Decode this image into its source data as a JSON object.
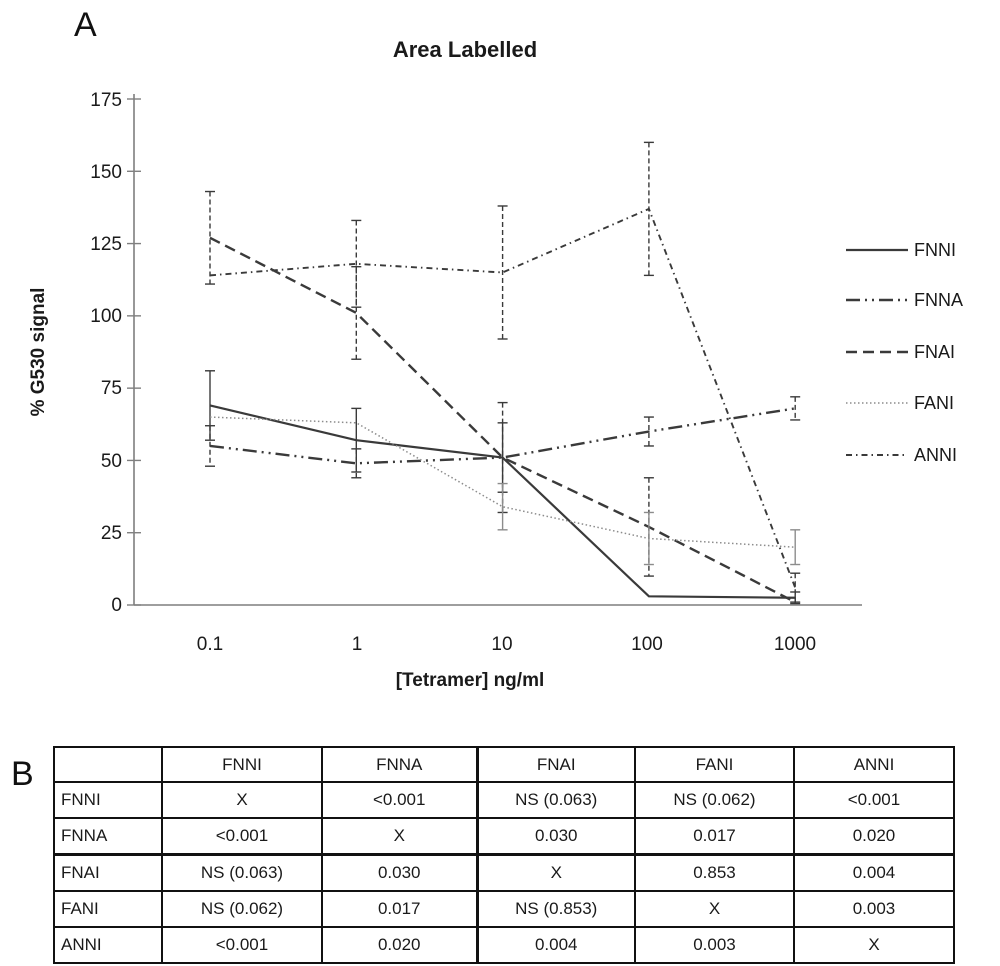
{
  "panels": {
    "a_label": "A",
    "b_label": "B"
  },
  "chart_data": {
    "type": "line",
    "title": "Area Labelled",
    "xlabel": "[Tetramer] ng/ml",
    "ylabel": "% G530 signal",
    "x_scale": "log",
    "categories": [
      0.1,
      1,
      10,
      100,
      1000
    ],
    "x_tick_labels": [
      "0.1",
      "1",
      "10",
      "100",
      "1000"
    ],
    "y_ticks": [
      0,
      25,
      50,
      75,
      100,
      125,
      150,
      175
    ],
    "y_tick_labels": [
      "175",
      "150",
      "125",
      "100",
      "75",
      "50",
      "25",
      "0"
    ],
    "ylim": [
      0,
      175
    ],
    "grid": false,
    "legend_position": "right",
    "error_bars": true,
    "series": [
      {
        "name": "FNNI",
        "style": "solid",
        "color": "#3a3a3a",
        "values": [
          69,
          57,
          51,
          3,
          2.5
        ],
        "errors": [
          12,
          11,
          12,
          0,
          2
        ]
      },
      {
        "name": "FNNA",
        "style": "dash-dot-dot",
        "color": "#3a3a3a",
        "values": [
          55,
          49,
          51,
          60,
          68
        ],
        "errors": [
          7,
          5,
          0,
          5,
          4
        ]
      },
      {
        "name": "FNAI",
        "style": "dash",
        "color": "#3a3a3a",
        "values": [
          127,
          101,
          51,
          27,
          1
        ],
        "errors": [
          16,
          16,
          19,
          17,
          0
        ]
      },
      {
        "name": "FANI",
        "style": "dot",
        "color": "#8c8c8c",
        "values": [
          65,
          63,
          34,
          23,
          20
        ],
        "errors": [
          0,
          0,
          8,
          9,
          6
        ]
      },
      {
        "name": "ANNI",
        "style": "dash-dot",
        "color": "#3a3a3a",
        "values": [
          114,
          118,
          115,
          137,
          6
        ],
        "errors": [
          0,
          15,
          23,
          23,
          5
        ]
      }
    ]
  },
  "table": {
    "corner": "",
    "col_headers": [
      "FNNI",
      "FNNA",
      "FNAI",
      "FANI",
      "ANNI"
    ],
    "rows": [
      {
        "label": "FNNI",
        "cells": [
          "X",
          "<0.001",
          "NS (0.063)",
          "NS (0.062)",
          "<0.001"
        ]
      },
      {
        "label": "FNNA",
        "cells": [
          "<0.001",
          "X",
          "0.030",
          "0.017",
          "0.020"
        ]
      },
      {
        "label": "FNAI",
        "cells": [
          "NS (0.063)",
          "0.030",
          "X",
          "0.853",
          "0.004"
        ]
      },
      {
        "label": "FANI",
        "cells": [
          "NS (0.062)",
          "0.017",
          "NS (0.853)",
          "X",
          "0.003"
        ]
      },
      {
        "label": "ANNI",
        "cells": [
          "<0.001",
          "0.020",
          "0.004",
          "0.003",
          "X"
        ]
      }
    ]
  }
}
